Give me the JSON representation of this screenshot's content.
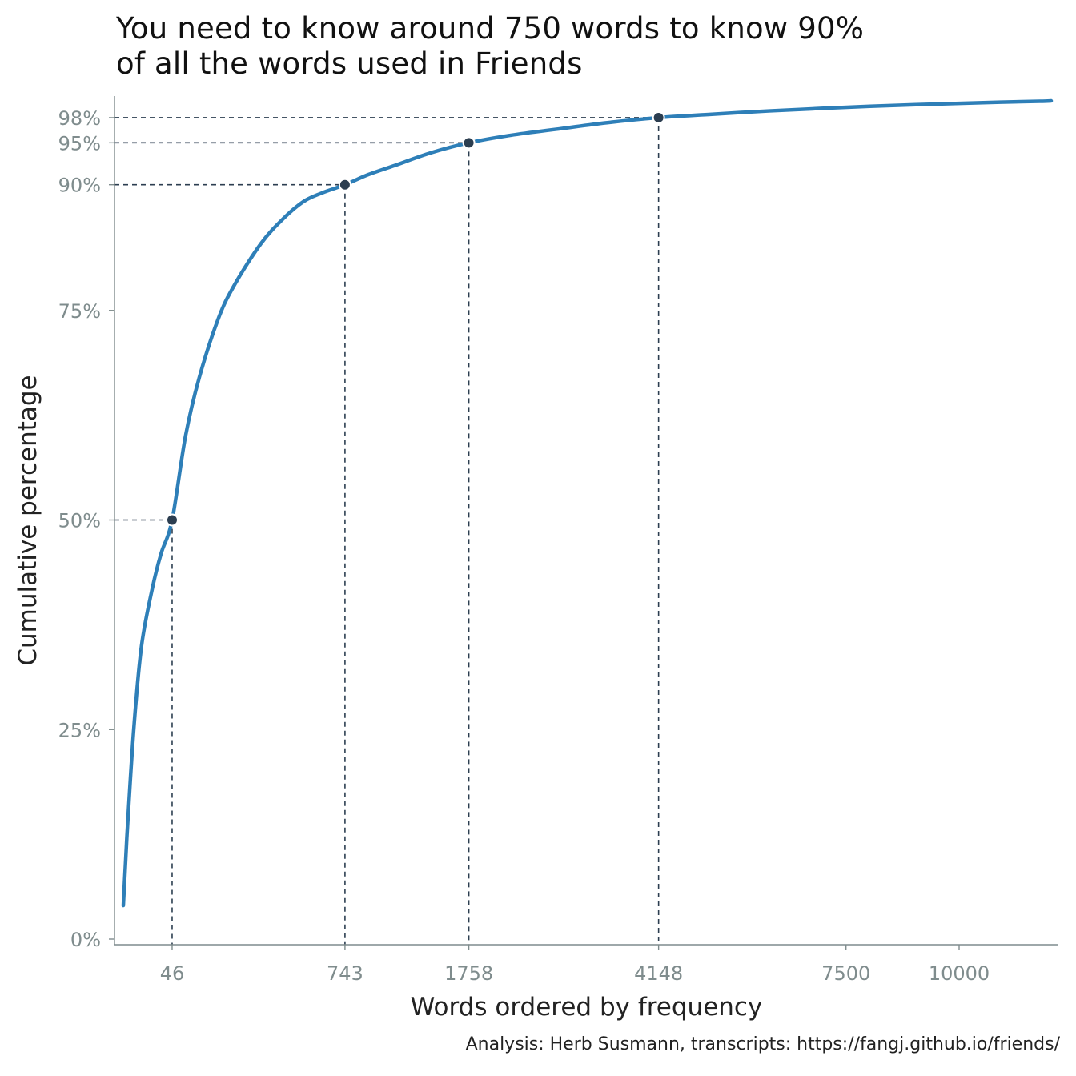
{
  "title_lines": [
    "You need to know around 750 words to know 90%",
    "of all the words used in Friends"
  ],
  "caption": "Analysis: Herb Susmann, transcripts: https://fangj.github.io/friends/",
  "colors": {
    "line": "#2e7fb8",
    "point": "#2c3e50",
    "guide": "#2c3e50",
    "tick": "#7f8c8d",
    "axis": "#7f8c8d"
  },
  "chart_data": {
    "type": "line",
    "xlabel": "Words ordered by frequency",
    "ylabel": "Cumulative percentage",
    "xlim": [
      1,
      12300
    ],
    "ylim": [
      0,
      100
    ],
    "x_scale": "sqrt",
    "x_ticks": [
      46,
      743,
      1758,
      4148,
      7500,
      10000
    ],
    "y_ticks": [
      0,
      25,
      50,
      75,
      90,
      95,
      98
    ],
    "y_tick_labels": [
      "0%",
      "25%",
      "50%",
      "75%",
      "90%",
      "95%",
      "98%"
    ],
    "series": [
      {
        "x": [
          1,
          2,
          5,
          10,
          20,
          30,
          46,
          70,
          100,
          150,
          200,
          300,
          400,
          500,
          600,
          743,
          900,
          1100,
          1400,
          1758,
          2200,
          2800,
          3400,
          4148,
          5000,
          6000,
          7000,
          8000,
          9000,
          10000,
          11000,
          12000,
          12300
        ],
        "y": [
          4,
          12,
          25,
          35,
          42,
          46,
          50,
          60,
          67,
          74,
          78,
          83,
          86,
          88,
          89,
          90,
          91.2,
          92.3,
          93.8,
          95,
          95.9,
          96.7,
          97.4,
          98,
          98.4,
          98.8,
          99.1,
          99.35,
          99.55,
          99.7,
          99.85,
          99.95,
          100
        ]
      }
    ],
    "highlight_points": [
      {
        "x": 46,
        "y": 50
      },
      {
        "x": 743,
        "y": 90
      },
      {
        "x": 1758,
        "y": 95
      },
      {
        "x": 4148,
        "y": 98
      }
    ]
  }
}
